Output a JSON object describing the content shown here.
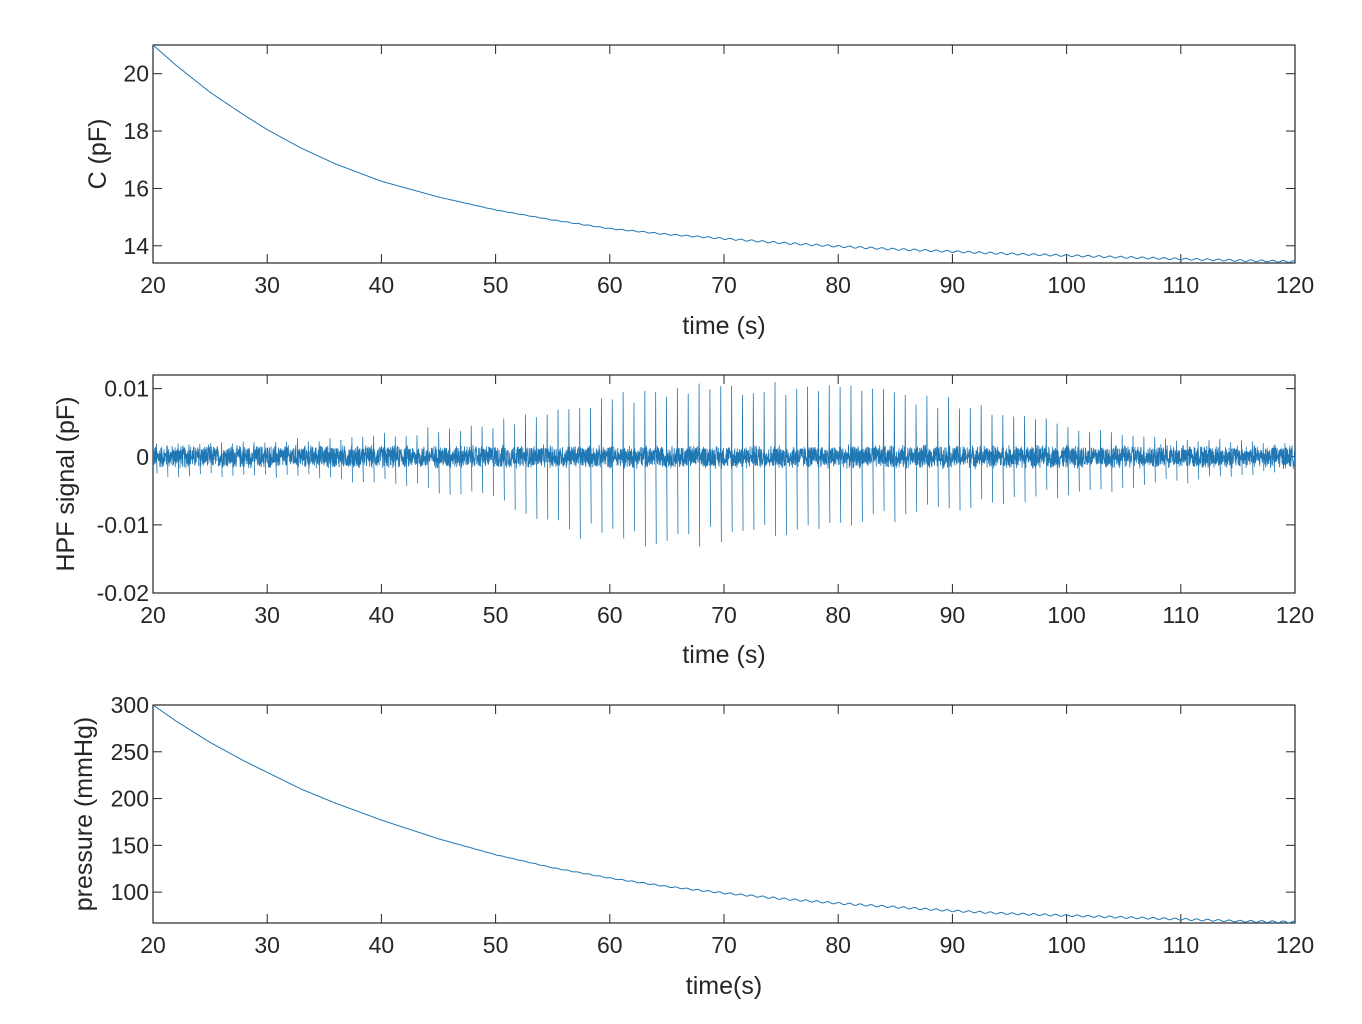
{
  "chart_data": [
    {
      "type": "line",
      "title": "",
      "xlabel": "time (s)",
      "ylabel": "C (pF)",
      "xlim": [
        20,
        120
      ],
      "ylim": [
        13.4,
        21
      ],
      "xticks": [
        "20",
        "30",
        "40",
        "50",
        "60",
        "70",
        "80",
        "90",
        "100",
        "110",
        "120"
      ],
      "yticks": [
        "14",
        "16",
        "18",
        "20"
      ],
      "grid": false,
      "series_color": "#1f77b4",
      "series": [
        {
          "x": [
            20,
            22,
            25,
            28,
            30,
            33,
            36,
            40,
            45,
            50,
            55,
            60,
            65,
            70,
            75,
            80,
            85,
            90,
            95,
            100,
            105,
            110,
            115,
            120
          ],
          "values": [
            21.0,
            20.3,
            19.35,
            18.55,
            18.05,
            17.4,
            16.85,
            16.25,
            15.7,
            15.25,
            14.9,
            14.6,
            14.4,
            14.25,
            14.1,
            13.98,
            13.88,
            13.8,
            13.72,
            13.66,
            13.6,
            13.54,
            13.49,
            13.45
          ]
        }
      ]
    },
    {
      "type": "line",
      "title": "",
      "xlabel": "time (s)",
      "ylabel": "HPF signal (pF)",
      "xlim": [
        20,
        120
      ],
      "ylim": [
        -0.02,
        0.012
      ],
      "xticks": [
        "20",
        "30",
        "40",
        "50",
        "60",
        "70",
        "80",
        "90",
        "100",
        "110",
        "120"
      ],
      "yticks": [
        "0.01",
        "0",
        "-0.01",
        "-0.02"
      ],
      "grid": false,
      "series_color": "#1f77b4",
      "pulse_amplitude_envelope": {
        "x": [
          20,
          30,
          40,
          50,
          55,
          60,
          65,
          70,
          75,
          80,
          85,
          90,
          95,
          100,
          105,
          110,
          115,
          120
        ],
        "upper": [
          0.002,
          0.0025,
          0.0035,
          0.0055,
          0.0075,
          0.0095,
          0.0105,
          0.011,
          0.0112,
          0.011,
          0.0105,
          0.009,
          0.007,
          0.005,
          0.004,
          0.003,
          0.0025,
          0.002
        ],
        "lower": [
          -0.003,
          -0.003,
          -0.004,
          -0.007,
          -0.011,
          -0.0135,
          -0.014,
          -0.0135,
          -0.013,
          -0.0115,
          -0.01,
          -0.0085,
          -0.007,
          -0.006,
          -0.005,
          -0.004,
          -0.003,
          -0.002
        ]
      },
      "noise_level": 0.0018,
      "pulse_interval_s": 0.95
    },
    {
      "type": "line",
      "title": "",
      "xlabel": "time(s)",
      "ylabel": "pressure (mmHg)",
      "xlim": [
        20,
        120
      ],
      "ylim": [
        67,
        300
      ],
      "xticks": [
        "20",
        "30",
        "40",
        "50",
        "60",
        "70",
        "80",
        "90",
        "100",
        "110",
        "120"
      ],
      "yticks": [
        "100",
        "150",
        "200",
        "250",
        "300"
      ],
      "grid": false,
      "series_color": "#1f77b4",
      "series": [
        {
          "x": [
            20,
            22,
            25,
            28,
            30,
            33,
            36,
            40,
            45,
            50,
            55,
            60,
            65,
            70,
            75,
            80,
            85,
            90,
            95,
            100,
            105,
            110,
            115,
            120
          ],
          "values": [
            300,
            283,
            260,
            240,
            228,
            210,
            195,
            177,
            157,
            140,
            126,
            115,
            106,
            99,
            93,
            88,
            84,
            80,
            77,
            75,
            73,
            71,
            69,
            68
          ]
        }
      ]
    }
  ]
}
